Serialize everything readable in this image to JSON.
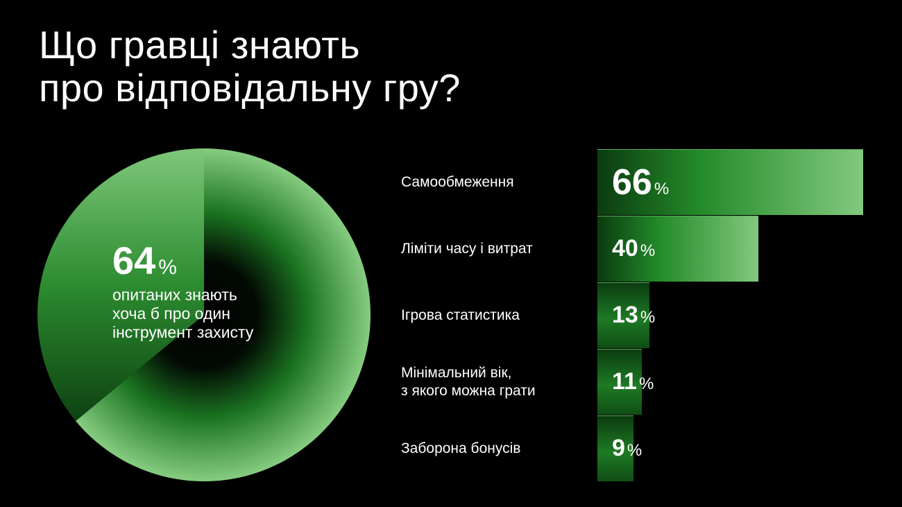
{
  "title": {
    "line1": "Що гравці знають",
    "line2": "про відповідальну гру?"
  },
  "colors": {
    "background": "#000000",
    "green_dark": "#0e4a14",
    "green_mid": "#23862a",
    "green_light": "#82c97e"
  },
  "chart_data": [
    {
      "type": "pie",
      "slices": [
        {
          "name": "",
          "value": 64
        },
        {
          "name": "",
          "value": 36
        }
      ],
      "value_label": "64",
      "unit": "%",
      "description": [
        "опитаних знають",
        "хоча б про один",
        "інструмент захисту"
      ]
    },
    {
      "type": "bar",
      "orientation": "horizontal",
      "unit": "%",
      "xlim": [
        0,
        100
      ],
      "categories": [
        [
          "Самообмеження"
        ],
        [
          "Ліміти часу і витрат"
        ],
        [
          "Ігрова статистика"
        ],
        [
          "Мінімальний вік,",
          "з якого можна грати"
        ],
        [
          "Заборона бонусів"
        ]
      ],
      "values": [
        66,
        40,
        13,
        11,
        9
      ],
      "value_labels": [
        "66",
        "40",
        "13",
        "11",
        "9"
      ]
    }
  ]
}
